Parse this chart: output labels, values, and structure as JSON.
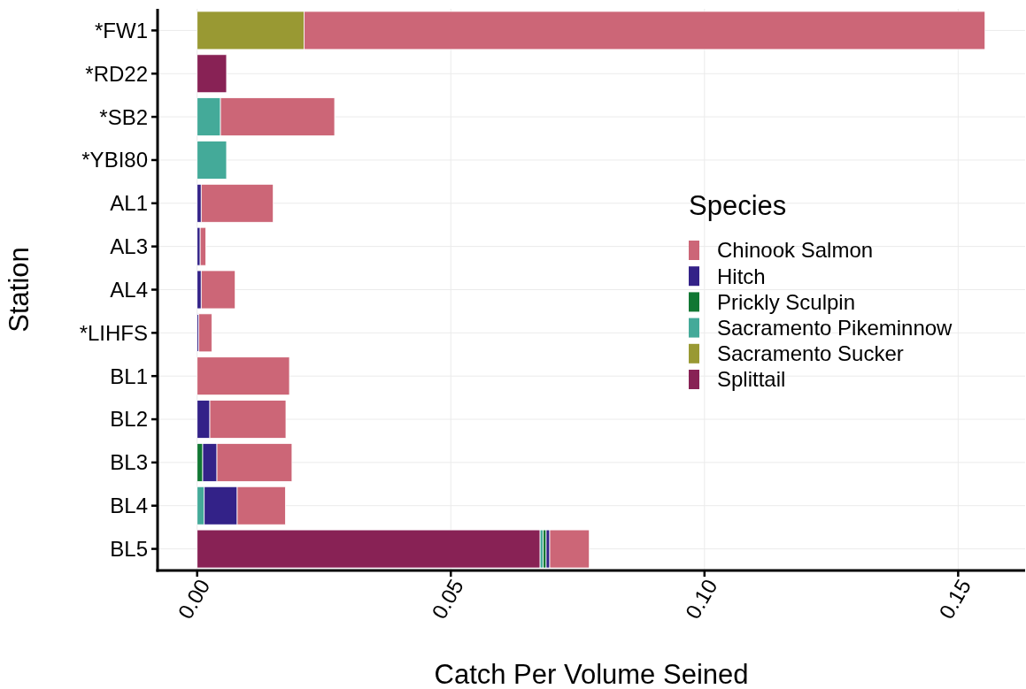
{
  "chart_data": {
    "type": "bar",
    "orientation": "horizontal",
    "stacked": true,
    "xlabel": "Catch Per Volume Seined",
    "ylabel": "Station",
    "legend_title": "Species",
    "categories": [
      "*FW1",
      "*RD22",
      "*SB2",
      "*YBI80",
      "AL1",
      "AL3",
      "AL4",
      "*LIHFS",
      "BL1",
      "BL2",
      "BL3",
      "BL4",
      "BL5"
    ],
    "series": [
      {
        "name": "Splittail",
        "color": "#882255",
        "values": [
          null,
          0.0058,
          null,
          null,
          null,
          null,
          null,
          null,
          null,
          null,
          null,
          null,
          0.0676
        ]
      },
      {
        "name": "Sacramento Sucker",
        "color": "#999933",
        "values": [
          0.0211,
          null,
          null,
          null,
          null,
          null,
          null,
          null,
          null,
          null,
          null,
          null,
          null
        ]
      },
      {
        "name": "Sacramento Pikeminnow",
        "color": "#44aa99",
        "values": [
          null,
          null,
          0.0046,
          0.0058,
          null,
          null,
          null,
          null,
          null,
          null,
          null,
          0.0014,
          0.0006
        ]
      },
      {
        "name": "Prickly Sculpin",
        "color": "#117733",
        "values": [
          null,
          null,
          null,
          null,
          null,
          null,
          null,
          null,
          null,
          null,
          0.0011,
          null,
          0.0006
        ]
      },
      {
        "name": "Hitch",
        "color": "#332288",
        "values": [
          null,
          null,
          null,
          null,
          0.0008,
          0.0006,
          0.0008,
          0.0003,
          null,
          0.0025,
          0.0028,
          0.0065,
          0.0007
        ]
      },
      {
        "name": "Chinook Salmon",
        "color": "#cc6677",
        "values": [
          0.1342,
          null,
          0.0225,
          null,
          0.0142,
          0.0011,
          0.0067,
          0.0026,
          0.0182,
          0.015,
          0.0148,
          0.0095,
          0.0078
        ]
      }
    ],
    "xlim": [
      -0.0078,
      0.1632
    ],
    "xticks": [
      {
        "value": 0,
        "label": "0.00"
      },
      {
        "value": 0.05,
        "label": "0.05"
      },
      {
        "value": 0.1,
        "label": "0.10"
      },
      0.15
    ],
    "grid": true,
    "legend": "right"
  }
}
